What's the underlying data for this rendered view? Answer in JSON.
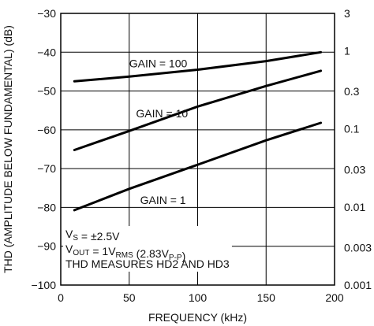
{
  "chart_data": {
    "type": "line",
    "xlabel": "FREQUENCY (kHz)",
    "ylabel": "THD (AMPLITUDE BELOW FUNDAMENTAL) (dB)",
    "xlim": [
      0,
      200
    ],
    "ylim": [
      -100,
      -30
    ],
    "y2lim": [
      0.001,
      3
    ],
    "y2scale": "log",
    "grid": true,
    "x_ticks": [
      "0",
      "50",
      "100",
      "150",
      "200"
    ],
    "y_ticks": [
      "−30",
      "−40",
      "−50",
      "−60",
      "−70",
      "−80",
      "−90",
      "−100"
    ],
    "y2_ticks": [
      "3",
      "1",
      "0.3",
      "0.1",
      "0.03",
      "0.01",
      "0.003",
      "0.001"
    ],
    "series": [
      {
        "name": "GAIN = 100",
        "x": [
          10,
          50,
          100,
          150,
          190
        ],
        "y": [
          -47.5,
          -46.3,
          -44.5,
          -42.3,
          -40.0
        ]
      },
      {
        "name": "GAIN = 10",
        "x": [
          10,
          50,
          100,
          150,
          190
        ],
        "y": [
          -65.2,
          -60.3,
          -54.0,
          -48.7,
          -44.8
        ]
      },
      {
        "name": "GAIN = 1",
        "x": [
          10,
          50,
          100,
          150,
          190
        ],
        "y": [
          -80.7,
          -75.2,
          -69.0,
          -62.7,
          -58.2
        ]
      }
    ],
    "annotations": [
      {
        "parts": [
          {
            "t": "V"
          },
          {
            "t": "S",
            "sub": true
          },
          {
            "t": " = ±2.5V"
          }
        ]
      },
      {
        "parts": [
          {
            "t": "V"
          },
          {
            "t": "OUT",
            "sub": true
          },
          {
            "t": " = 1V"
          },
          {
            "t": "RMS",
            "sub": true
          },
          {
            "t": " (2.83V"
          },
          {
            "t": "P-P",
            "sub": true
          },
          {
            "t": ")"
          }
        ]
      },
      {
        "parts": [
          {
            "t": "THD MEASURES HD2 AND HD3"
          }
        ]
      }
    ]
  }
}
